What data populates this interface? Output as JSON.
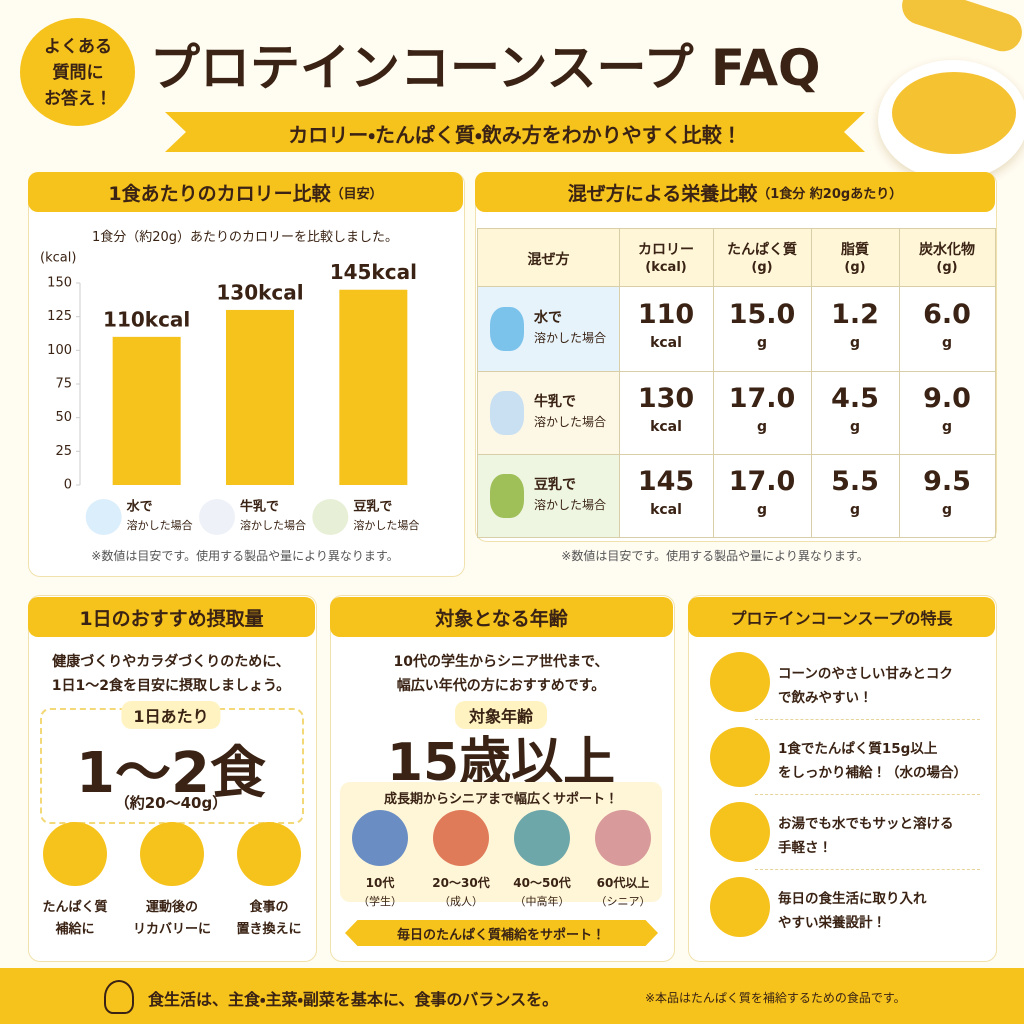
{
  "header": {
    "badge": [
      "よくある",
      "質問に",
      "お答え！"
    ],
    "title": "プロテインコーンスープ FAQ",
    "subtitle": "カロリー・たんぱく質・飲み方をわかりやすく比較！"
  },
  "chart_data": {
    "type": "bar",
    "title": "1食あたりのカロリー比較",
    "title_note": "（目安）",
    "subtitle": "1食分（約20g）あたりのカロリーを比較しました。",
    "y_label": "(kcal)",
    "categories": [
      "水で",
      "牛乳で",
      "豆乳で"
    ],
    "category_notes": [
      "溶かした場合",
      "溶かした場合",
      "溶かした場合"
    ],
    "values": [
      110,
      130,
      145
    ],
    "value_labels": [
      "110kcal",
      "130kcal",
      "145kcal"
    ],
    "color": "#f6c21c",
    "ylim": [
      0,
      150
    ],
    "yticks": [
      0,
      25,
      50,
      75,
      100,
      125,
      150
    ],
    "note": "※数値は目安です。使用する製品や量により異なります。"
  },
  "table": {
    "title": "混ぜ方による栄養比較",
    "title_note": "（1食分 約20gあたり）",
    "columns": [
      {
        "name": "混ぜ方"
      },
      {
        "name": "カロリー",
        "unit": "(kcal)"
      },
      {
        "name": "たんぱく質",
        "unit": "(g)"
      },
      {
        "name": "脂質",
        "unit": "(g)"
      },
      {
        "name": "炭水化物",
        "unit": "(g)"
      }
    ],
    "rows": [
      {
        "method": "水で",
        "note": "溶かした場合",
        "cells": [
          {
            "value": "110",
            "unit": "kcal"
          },
          {
            "value": "15.0",
            "unit": "g"
          },
          {
            "value": "1.2",
            "unit": "g"
          },
          {
            "value": "6.0",
            "unit": "g"
          }
        ]
      },
      {
        "method": "牛乳で",
        "note": "溶かした場合",
        "cells": [
          {
            "value": "130",
            "unit": "kcal"
          },
          {
            "value": "17.0",
            "unit": "g"
          },
          {
            "value": "4.5",
            "unit": "g"
          },
          {
            "value": "9.0",
            "unit": "g"
          }
        ]
      },
      {
        "method": "豆乳で",
        "note": "溶かした場合",
        "cells": [
          {
            "value": "145",
            "unit": "kcal"
          },
          {
            "value": "17.0",
            "unit": "g"
          },
          {
            "value": "5.5",
            "unit": "g"
          },
          {
            "value": "9.5",
            "unit": "g"
          }
        ]
      }
    ],
    "note": "※数値は目安です。使用する製品や量により異なります。"
  },
  "intake": {
    "title": "1日のおすすめ摂取量",
    "text": [
      "健康づくりやカラダづくりのために、",
      "1日1～2食を目安に摂取しましょう。"
    ],
    "label": "1日あたり",
    "amount": "1～2食",
    "amount_note": "（約20～40g）",
    "items": [
      {
        "lines": [
          "たんぱく質",
          "補給に"
        ]
      },
      {
        "lines": [
          "運動後の",
          "リカバリーに"
        ]
      },
      {
        "lines": [
          "食事の",
          "置き換えに"
        ]
      }
    ]
  },
  "age": {
    "title": "対象となる年齢",
    "text": [
      "10代の学生からシニア世代まで、",
      "幅広い年代の方におすすめです。"
    ],
    "label": "対象年齢",
    "age": "15歳以上",
    "support": "成長期からシニアまで幅広くサポート！",
    "people": [
      {
        "age": "10代",
        "group": "（学生）"
      },
      {
        "age": "20～30代",
        "group": "（成人）"
      },
      {
        "age": "40～50代",
        "group": "（中高年）"
      },
      {
        "age": "60代以上",
        "group": "（シニア）"
      }
    ],
    "footer": "毎日のたんぱく質補給をサポート！"
  },
  "features": {
    "title": "プロテインコーンスープの特長",
    "items": [
      {
        "lines": [
          "コーンのやさしい甘みとコク",
          "で飲みやすい！"
        ]
      },
      {
        "lines": [
          "1食でたんぱく質15g以上",
          "をしっかり補給！（水の場合）"
        ]
      },
      {
        "lines": [
          "お湯でも水でもサッと溶ける",
          "手軽さ！"
        ]
      },
      {
        "lines": [
          "毎日の食生活に取り入れ",
          "やすい栄養設計！"
        ]
      }
    ]
  },
  "footer": {
    "message": "食生活は、主食・主菜・副菜を基本に、食事のバランスを。",
    "note": "※本品はたんぱく質を補給するための食品です。"
  }
}
